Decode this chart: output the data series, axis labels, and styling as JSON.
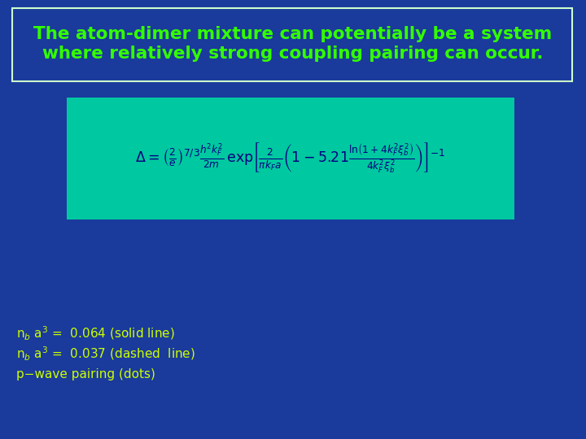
{
  "bg_color": "#1a3a9c",
  "title_text": "The atom-dimer mixture can potentially be a system\nwhere relatively strong coupling pairing can occur.",
  "title_color": "#33ff00",
  "title_box_edge_color": "#ccffcc",
  "title_box_bg": "#1a3a9c",
  "formula_box_bg": "#00c8a0",
  "formula_color": "#000080",
  "legend_color": "#ccff00",
  "legend_lines": [
    "n$_b$ a$^3$ =  0.064 (solid line)",
    "n$_b$ a$^3$ =  0.037 (dashed  line)",
    "p−wave pairing (dots)"
  ]
}
